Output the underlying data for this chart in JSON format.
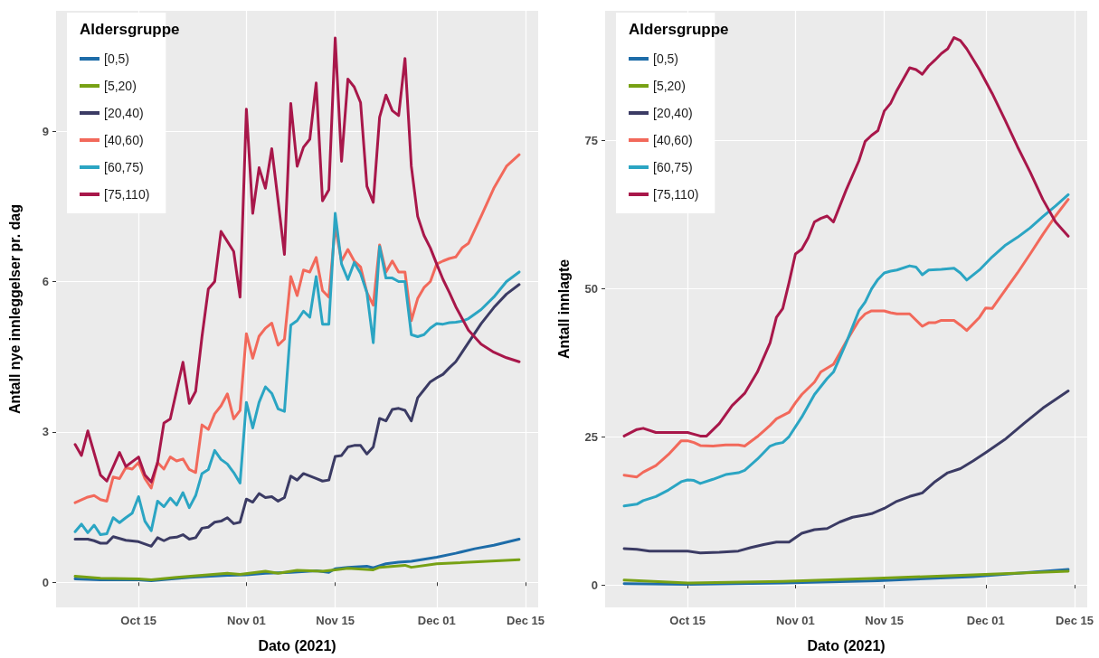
{
  "chart_data": [
    {
      "type": "line",
      "xlabel": "Dato (2021)",
      "ylabel": "Antall nye innleggelser pr. dag",
      "legend_title": "Aldersgruppe",
      "legend": "top left",
      "grid": true,
      "marker": "none",
      "xlim": [
        "2021-10-02",
        "2021-12-17"
      ],
      "ylim": [
        -0.5,
        11.4
      ],
      "xticks": [
        {
          "value": "2021-10-15",
          "label": "Oct 15"
        },
        {
          "value": "2021-11-01",
          "label": "Nov 01"
        },
        {
          "value": "2021-11-15",
          "label": "Nov 15"
        },
        {
          "value": "2021-12-01",
          "label": "Dec 01"
        },
        {
          "value": "2021-12-15",
          "label": "Dec 15"
        }
      ],
      "yticks": [
        0,
        3,
        6,
        9
      ],
      "series": [
        {
          "name": "[0,5)",
          "color": "#1d6ca8",
          "x": [
            "2021-10-05",
            "2021-10-09",
            "2021-10-15",
            "2021-10-17",
            "2021-10-23",
            "2021-10-29",
            "2021-11-01",
            "2021-11-04",
            "2021-11-08",
            "2021-11-12",
            "2021-11-14",
            "2021-11-15",
            "2021-11-17",
            "2021-11-20",
            "2021-11-21",
            "2021-11-23",
            "2021-11-25",
            "2021-11-27",
            "2021-11-29",
            "2021-12-01",
            "2021-12-04",
            "2021-12-07",
            "2021-12-10",
            "2021-12-14"
          ],
          "values": [
            0.07,
            0.05,
            0.05,
            0.03,
            0.1,
            0.14,
            0.15,
            0.18,
            0.2,
            0.23,
            0.2,
            0.27,
            0.3,
            0.32,
            0.29,
            0.37,
            0.4,
            0.42,
            0.46,
            0.5,
            0.58,
            0.67,
            0.74,
            0.86
          ]
        },
        {
          "name": "[5,20)",
          "color": "#77a114",
          "x": [
            "2021-10-05",
            "2021-10-09",
            "2021-10-15",
            "2021-10-17",
            "2021-10-21",
            "2021-10-25",
            "2021-10-29",
            "2021-10-31",
            "2021-11-04",
            "2021-11-06",
            "2021-11-09",
            "2021-11-13",
            "2021-11-15",
            "2021-11-17",
            "2021-11-21",
            "2021-11-22",
            "2021-11-26",
            "2021-11-27",
            "2021-12-01",
            "2021-12-14"
          ],
          "values": [
            0.12,
            0.08,
            0.07,
            0.05,
            0.1,
            0.14,
            0.18,
            0.16,
            0.22,
            0.18,
            0.24,
            0.22,
            0.25,
            0.28,
            0.25,
            0.3,
            0.34,
            0.3,
            0.37,
            0.45
          ]
        },
        {
          "name": "[20,40)",
          "color": "#3b3b64",
          "x": [
            "2021-10-05",
            "2021-10-07",
            "2021-10-08",
            "2021-10-09",
            "2021-10-10",
            "2021-10-11",
            "2021-10-13",
            "2021-10-15",
            "2021-10-17",
            "2021-10-18",
            "2021-10-19",
            "2021-10-20",
            "2021-10-21",
            "2021-10-22",
            "2021-10-23",
            "2021-10-24",
            "2021-10-25",
            "2021-10-26",
            "2021-10-27",
            "2021-10-28",
            "2021-10-29",
            "2021-10-30",
            "2021-10-31",
            "2021-11-01",
            "2021-11-02",
            "2021-11-03",
            "2021-11-04",
            "2021-11-05",
            "2021-11-06",
            "2021-11-07",
            "2021-11-08",
            "2021-11-09",
            "2021-11-10",
            "2021-11-11",
            "2021-11-12",
            "2021-11-13",
            "2021-11-14",
            "2021-11-15",
            "2021-11-16",
            "2021-11-17",
            "2021-11-18",
            "2021-11-19",
            "2021-11-20",
            "2021-11-21",
            "2021-11-22",
            "2021-11-23",
            "2021-11-24",
            "2021-11-25",
            "2021-11-26",
            "2021-11-27",
            "2021-11-28",
            "2021-11-29",
            "2021-11-30",
            "2021-12-01",
            "2021-12-02",
            "2021-12-03",
            "2021-12-04",
            "2021-12-06",
            "2021-12-08",
            "2021-12-10",
            "2021-12-12",
            "2021-12-14"
          ],
          "values": [
            0.86,
            0.86,
            0.83,
            0.78,
            0.78,
            0.91,
            0.84,
            0.81,
            0.72,
            0.89,
            0.83,
            0.89,
            0.9,
            0.95,
            0.86,
            0.89,
            1.08,
            1.1,
            1.2,
            1.22,
            1.29,
            1.17,
            1.2,
            1.66,
            1.6,
            1.77,
            1.69,
            1.71,
            1.62,
            1.69,
            2.12,
            2.04,
            2.17,
            2.12,
            2.07,
            2.02,
            2.04,
            2.51,
            2.53,
            2.7,
            2.73,
            2.73,
            2.56,
            2.7,
            3.27,
            3.22,
            3.45,
            3.47,
            3.43,
            3.22,
            3.68,
            3.84,
            4.0,
            4.08,
            4.15,
            4.28,
            4.4,
            4.78,
            5.16,
            5.48,
            5.75,
            5.94
          ]
        },
        {
          "name": "[40,60)",
          "color": "#f2695b",
          "x": [
            "2021-10-05",
            "2021-10-07",
            "2021-10-08",
            "2021-10-09",
            "2021-10-10",
            "2021-10-11",
            "2021-10-12",
            "2021-10-13",
            "2021-10-14",
            "2021-10-15",
            "2021-10-16",
            "2021-10-17",
            "2021-10-18",
            "2021-10-19",
            "2021-10-20",
            "2021-10-21",
            "2021-10-22",
            "2021-10-23",
            "2021-10-24",
            "2021-10-25",
            "2021-10-26",
            "2021-10-27",
            "2021-10-28",
            "2021-10-29",
            "2021-10-30",
            "2021-10-31",
            "2021-11-01",
            "2021-11-02",
            "2021-11-03",
            "2021-11-04",
            "2021-11-05",
            "2021-11-06",
            "2021-11-07",
            "2021-11-08",
            "2021-11-09",
            "2021-11-10",
            "2021-11-11",
            "2021-11-12",
            "2021-11-13",
            "2021-11-14",
            "2021-11-15",
            "2021-11-16",
            "2021-11-17",
            "2021-11-18",
            "2021-11-19",
            "2021-11-20",
            "2021-11-21",
            "2021-11-22",
            "2021-11-23",
            "2021-11-24",
            "2021-11-25",
            "2021-11-26",
            "2021-11-27",
            "2021-11-28",
            "2021-11-29",
            "2021-11-30",
            "2021-12-01",
            "2021-12-02",
            "2021-12-03",
            "2021-12-04",
            "2021-12-05",
            "2021-12-06",
            "2021-12-08",
            "2021-12-10",
            "2021-12-12",
            "2021-12-14"
          ],
          "values": [
            1.59,
            1.7,
            1.73,
            1.65,
            1.62,
            2.1,
            2.07,
            2.29,
            2.26,
            2.39,
            2.07,
            1.88,
            2.39,
            2.26,
            2.5,
            2.42,
            2.46,
            2.25,
            2.19,
            3.14,
            3.05,
            3.36,
            3.52,
            3.76,
            3.26,
            3.43,
            4.96,
            4.47,
            4.91,
            5.07,
            5.17,
            4.73,
            4.85,
            6.1,
            5.72,
            6.23,
            6.19,
            6.48,
            5.82,
            5.69,
            7.1,
            6.41,
            6.64,
            6.41,
            6.29,
            5.78,
            5.53,
            6.73,
            6.19,
            6.41,
            6.19,
            6.19,
            5.22,
            5.66,
            5.88,
            6.0,
            6.35,
            6.41,
            6.46,
            6.49,
            6.67,
            6.76,
            7.3,
            7.86,
            8.3,
            8.53
          ]
        },
        {
          "name": "[60,75)",
          "color": "#2ba5c3",
          "x": [
            "2021-10-05",
            "2021-10-06",
            "2021-10-07",
            "2021-10-08",
            "2021-10-09",
            "2021-10-10",
            "2021-10-11",
            "2021-10-12",
            "2021-10-13",
            "2021-10-14",
            "2021-10-15",
            "2021-10-16",
            "2021-10-17",
            "2021-10-18",
            "2021-10-19",
            "2021-10-20",
            "2021-10-21",
            "2021-10-22",
            "2021-10-23",
            "2021-10-24",
            "2021-10-25",
            "2021-10-26",
            "2021-10-27",
            "2021-10-28",
            "2021-10-29",
            "2021-10-30",
            "2021-10-31",
            "2021-11-01",
            "2021-11-02",
            "2021-11-03",
            "2021-11-04",
            "2021-11-05",
            "2021-11-06",
            "2021-11-07",
            "2021-11-08",
            "2021-11-09",
            "2021-11-10",
            "2021-11-11",
            "2021-11-12",
            "2021-11-13",
            "2021-11-14",
            "2021-11-15",
            "2021-11-16",
            "2021-11-17",
            "2021-11-18",
            "2021-11-19",
            "2021-11-20",
            "2021-11-21",
            "2021-11-22",
            "2021-11-23",
            "2021-11-24",
            "2021-11-25",
            "2021-11-26",
            "2021-11-27",
            "2021-11-28",
            "2021-11-29",
            "2021-11-30",
            "2021-12-01",
            "2021-12-02",
            "2021-12-03",
            "2021-12-04",
            "2021-12-05",
            "2021-12-06",
            "2021-12-08",
            "2021-12-10",
            "2021-12-12",
            "2021-12-14"
          ],
          "values": [
            1.01,
            1.16,
            0.99,
            1.14,
            0.95,
            0.97,
            1.29,
            1.19,
            1.29,
            1.38,
            1.71,
            1.22,
            1.03,
            1.62,
            1.51,
            1.68,
            1.54,
            1.79,
            1.49,
            1.73,
            2.17,
            2.25,
            2.63,
            2.45,
            2.36,
            2.19,
            1.98,
            3.59,
            3.08,
            3.59,
            3.9,
            3.77,
            3.46,
            3.41,
            5.13,
            5.22,
            5.41,
            5.29,
            6.1,
            5.15,
            5.15,
            7.36,
            6.35,
            6.04,
            6.38,
            6.16,
            5.78,
            4.78,
            6.7,
            6.07,
            6.07,
            6.0,
            6.0,
            4.94,
            4.9,
            4.94,
            5.07,
            5.16,
            5.15,
            5.18,
            5.19,
            5.21,
            5.26,
            5.44,
            5.69,
            6.0,
            6.19
          ]
        },
        {
          "name": "[75,110)",
          "color": "#a8174a",
          "x": [
            "2021-10-05",
            "2021-10-06",
            "2021-10-07",
            "2021-10-09",
            "2021-10-10",
            "2021-10-12",
            "2021-10-13",
            "2021-10-15",
            "2021-10-16",
            "2021-10-17",
            "2021-10-18",
            "2021-10-19",
            "2021-10-20",
            "2021-10-22",
            "2021-10-23",
            "2021-10-24",
            "2021-10-25",
            "2021-10-26",
            "2021-10-27",
            "2021-10-28",
            "2021-10-29",
            "2021-10-30",
            "2021-10-31",
            "2021-11-01",
            "2021-11-02",
            "2021-11-03",
            "2021-11-04",
            "2021-11-05",
            "2021-11-06",
            "2021-11-07",
            "2021-11-08",
            "2021-11-09",
            "2021-11-10",
            "2021-11-11",
            "2021-11-12",
            "2021-11-13",
            "2021-11-14",
            "2021-11-15",
            "2021-11-16",
            "2021-11-17",
            "2021-11-18",
            "2021-11-19",
            "2021-11-20",
            "2021-11-21",
            "2021-11-22",
            "2021-11-23",
            "2021-11-24",
            "2021-11-25",
            "2021-11-26",
            "2021-11-27",
            "2021-11-28",
            "2021-11-29",
            "2021-11-30",
            "2021-12-01",
            "2021-12-02",
            "2021-12-03",
            "2021-12-04",
            "2021-12-06",
            "2021-12-08",
            "2021-12-10",
            "2021-12-12",
            "2021-12-14"
          ],
          "values": [
            2.75,
            2.53,
            3.02,
            2.14,
            2.02,
            2.59,
            2.31,
            2.5,
            2.14,
            2.0,
            2.39,
            3.18,
            3.26,
            4.39,
            3.57,
            3.81,
            4.9,
            5.85,
            6.0,
            7.0,
            6.8,
            6.6,
            5.69,
            9.44,
            7.36,
            8.27,
            7.86,
            8.65,
            7.61,
            6.54,
            9.55,
            8.3,
            8.68,
            8.84,
            9.96,
            7.61,
            7.83,
            10.86,
            8.4,
            10.04,
            9.88,
            9.57,
            7.9,
            7.58,
            9.28,
            9.72,
            9.41,
            9.31,
            10.45,
            8.3,
            7.3,
            6.92,
            6.67,
            6.35,
            6.04,
            5.78,
            5.5,
            5.03,
            4.75,
            4.59,
            4.48,
            4.4
          ]
        }
      ]
    },
    {
      "type": "line",
      "xlabel": "Dato (2021)",
      "ylabel": "Antall innlagte",
      "legend_title": "Aldersgruppe",
      "legend": "top left",
      "grid": true,
      "marker": "none",
      "xlim": [
        "2021-10-02",
        "2021-12-17"
      ],
      "ylim": [
        -3.8,
        96.8
      ],
      "xticks": [
        {
          "value": "2021-10-15",
          "label": "Oct 15"
        },
        {
          "value": "2021-11-01",
          "label": "Nov 01"
        },
        {
          "value": "2021-11-15",
          "label": "Nov 15"
        },
        {
          "value": "2021-12-01",
          "label": "Dec 01"
        },
        {
          "value": "2021-12-15",
          "label": "Dec 15"
        }
      ],
      "yticks": [
        0,
        25,
        50,
        75
      ],
      "series": [
        {
          "name": "[0,5)",
          "color": "#1d6ca8",
          "x": [
            "2021-10-05",
            "2021-10-15",
            "2021-10-30",
            "2021-11-14",
            "2021-11-29",
            "2021-12-14"
          ],
          "values": [
            0.2,
            0.1,
            0.3,
            0.7,
            1.4,
            2.6
          ]
        },
        {
          "name": "[5,20)",
          "color": "#77a114",
          "x": [
            "2021-10-05",
            "2021-10-15",
            "2021-10-30",
            "2021-11-14",
            "2021-11-29",
            "2021-12-14"
          ],
          "values": [
            0.8,
            0.3,
            0.6,
            1.1,
            1.7,
            2.3
          ]
        },
        {
          "name": "[20,40)",
          "color": "#3b3b64",
          "x": [
            "2021-10-05",
            "2021-10-07",
            "2021-10-09",
            "2021-10-12",
            "2021-10-15",
            "2021-10-17",
            "2021-10-20",
            "2021-10-23",
            "2021-10-25",
            "2021-10-27",
            "2021-10-29",
            "2021-10-31",
            "2021-11-02",
            "2021-11-04",
            "2021-11-06",
            "2021-11-08",
            "2021-11-10",
            "2021-11-12",
            "2021-11-13",
            "2021-11-15",
            "2021-11-17",
            "2021-11-19",
            "2021-11-21",
            "2021-11-23",
            "2021-11-25",
            "2021-11-27",
            "2021-11-29",
            "2021-12-01",
            "2021-12-04",
            "2021-12-07",
            "2021-12-10",
            "2021-12-14"
          ],
          "values": [
            6.1,
            6,
            5.7,
            5.7,
            5.7,
            5.4,
            5.5,
            5.7,
            6.3,
            6.8,
            7.2,
            7.2,
            8.7,
            9.3,
            9.5,
            10.6,
            11.4,
            11.8,
            12,
            12.9,
            14.1,
            14.9,
            15.5,
            17.4,
            18.9,
            19.6,
            20.9,
            22.3,
            24.5,
            27.2,
            29.8,
            32.7
          ]
        },
        {
          "name": "[40,60)",
          "color": "#f2695b",
          "x": [
            "2021-10-05",
            "2021-10-07",
            "2021-10-08",
            "2021-10-10",
            "2021-10-12",
            "2021-10-14",
            "2021-10-15",
            "2021-10-16",
            "2021-10-17",
            "2021-10-19",
            "2021-10-21",
            "2021-10-23",
            "2021-10-24",
            "2021-10-26",
            "2021-10-28",
            "2021-10-29",
            "2021-10-31",
            "2021-11-01",
            "2021-11-02",
            "2021-11-04",
            "2021-11-05",
            "2021-11-07",
            "2021-11-09",
            "2021-11-11",
            "2021-11-12",
            "2021-11-13",
            "2021-11-14",
            "2021-11-15",
            "2021-11-16",
            "2021-11-17",
            "2021-11-19",
            "2021-11-21",
            "2021-11-22",
            "2021-11-23",
            "2021-11-24",
            "2021-11-26",
            "2021-11-27",
            "2021-11-28",
            "2021-11-30",
            "2021-12-01",
            "2021-12-02",
            "2021-12-04",
            "2021-12-06",
            "2021-12-08",
            "2021-12-10",
            "2021-12-12",
            "2021-12-14"
          ],
          "values": [
            18.5,
            18.2,
            19,
            20.1,
            22,
            24.3,
            24.3,
            24,
            23.5,
            23.4,
            23.6,
            23.6,
            23.4,
            25,
            26.9,
            28,
            29.1,
            30.7,
            32.1,
            34.2,
            35.9,
            37.2,
            41,
            44.6,
            45.7,
            46.2,
            46.2,
            46.2,
            45.9,
            45.7,
            45.7,
            43.6,
            44.2,
            44.2,
            44.6,
            44.6,
            43.8,
            42.9,
            45.1,
            46.7,
            46.6,
            49.6,
            52.6,
            55.8,
            59.1,
            62.2,
            65
          ]
        },
        {
          "name": "[60,75)",
          "color": "#2ba5c3",
          "x": [
            "2021-10-05",
            "2021-10-07",
            "2021-10-08",
            "2021-10-10",
            "2021-10-12",
            "2021-10-14",
            "2021-10-15",
            "2021-10-16",
            "2021-10-17",
            "2021-10-19",
            "2021-10-21",
            "2021-10-23",
            "2021-10-24",
            "2021-10-26",
            "2021-10-28",
            "2021-10-29",
            "2021-10-30",
            "2021-10-31",
            "2021-11-02",
            "2021-11-04",
            "2021-11-06",
            "2021-11-07",
            "2021-11-09",
            "2021-11-11",
            "2021-11-12",
            "2021-11-13",
            "2021-11-14",
            "2021-11-15",
            "2021-11-16",
            "2021-11-17",
            "2021-11-19",
            "2021-11-20",
            "2021-11-21",
            "2021-11-22",
            "2021-11-24",
            "2021-11-26",
            "2021-11-27",
            "2021-11-28",
            "2021-11-30",
            "2021-12-02",
            "2021-12-04",
            "2021-12-06",
            "2021-12-08",
            "2021-12-10",
            "2021-12-12",
            "2021-12-14"
          ],
          "values": [
            13.3,
            13.6,
            14.2,
            14.9,
            16,
            17.4,
            17.7,
            17.6,
            17.1,
            17.8,
            18.6,
            18.9,
            19.3,
            21.2,
            23.4,
            23.8,
            24,
            25,
            28.3,
            32.1,
            34.8,
            35.9,
            40.8,
            46.2,
            47.7,
            49.9,
            51.5,
            52.6,
            52.9,
            53.1,
            53.8,
            53.6,
            52.3,
            53.1,
            53.2,
            53.4,
            52.6,
            51.4,
            53.1,
            55.3,
            57.2,
            58.6,
            60.2,
            62.1,
            63.9,
            65.8
          ]
        },
        {
          "name": "[75,110)",
          "color": "#a8174a",
          "x": [
            "2021-10-05",
            "2021-10-07",
            "2021-10-08",
            "2021-10-10",
            "2021-10-12",
            "2021-10-15",
            "2021-10-17",
            "2021-10-18",
            "2021-10-20",
            "2021-10-22",
            "2021-10-24",
            "2021-10-26",
            "2021-10-28",
            "2021-10-29",
            "2021-10-30",
            "2021-10-31",
            "2021-11-01",
            "2021-11-02",
            "2021-11-03",
            "2021-11-04",
            "2021-11-05",
            "2021-11-06",
            "2021-11-07",
            "2021-11-09",
            "2021-11-11",
            "2021-11-12",
            "2021-11-13",
            "2021-11-14",
            "2021-11-15",
            "2021-11-16",
            "2021-11-17",
            "2021-11-18",
            "2021-11-19",
            "2021-11-20",
            "2021-11-21",
            "2021-11-22",
            "2021-11-23",
            "2021-11-24",
            "2021-11-25",
            "2021-11-26",
            "2021-11-27",
            "2021-11-28",
            "2021-11-30",
            "2021-12-02",
            "2021-12-04",
            "2021-12-06",
            "2021-12-08",
            "2021-12-10",
            "2021-12-12",
            "2021-12-14"
          ],
          "values": [
            25.1,
            26.2,
            26.4,
            25.7,
            25.7,
            25.7,
            25.1,
            25.1,
            27.2,
            30.2,
            32.3,
            35.9,
            40.8,
            45.1,
            46.6,
            51,
            55.8,
            56.6,
            58.5,
            61.2,
            61.8,
            62.2,
            61.2,
            66.6,
            71.5,
            74.8,
            75.8,
            76.6,
            79.9,
            81.2,
            83.4,
            85.3,
            87.2,
            86.9,
            86.1,
            87.5,
            88.5,
            89.6,
            90.4,
            92.3,
            91.8,
            90.4,
            86.9,
            82.9,
            78.5,
            73.9,
            69.6,
            65,
            61.2,
            58.8
          ]
        }
      ]
    }
  ]
}
